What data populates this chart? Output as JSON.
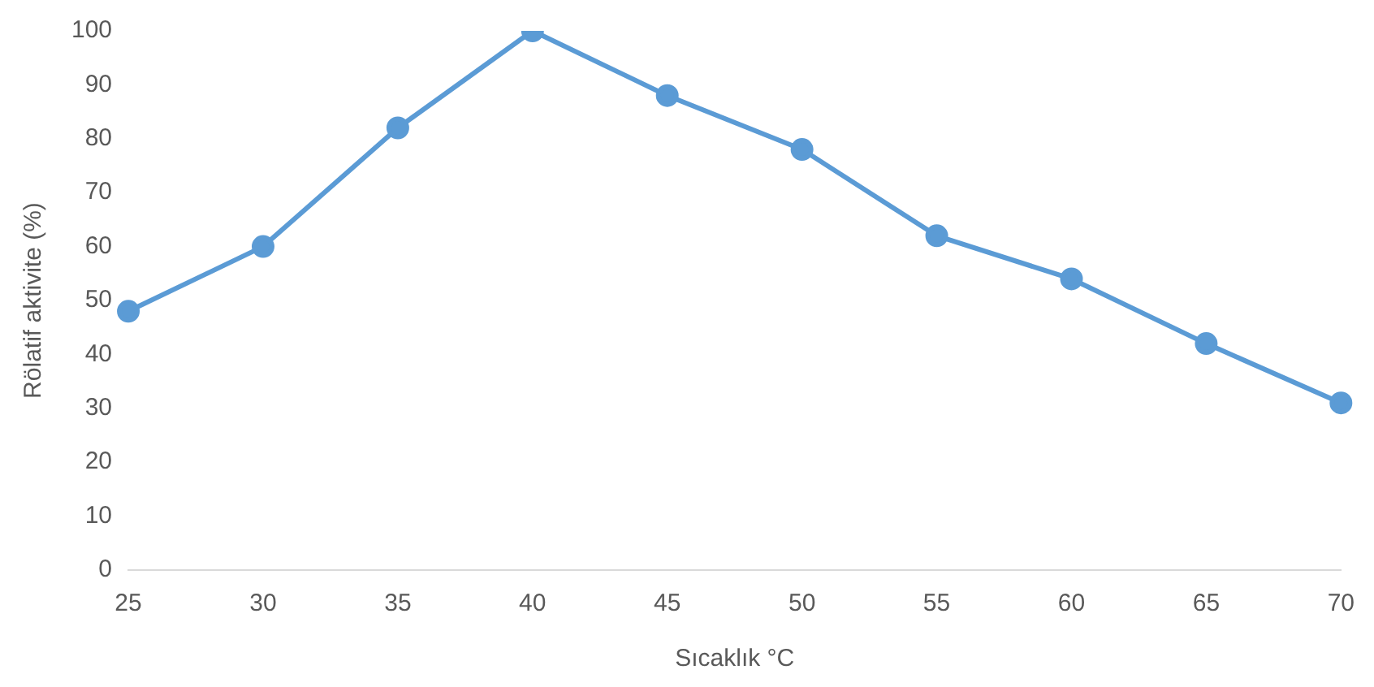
{
  "chart_data": {
    "type": "line",
    "xlabel": "Sıcaklık °C",
    "ylabel": "Rölatif aktivite (%)",
    "categories": [
      "25",
      "30",
      "35",
      "40",
      "45",
      "50",
      "55",
      "60",
      "65",
      "70"
    ],
    "series": [
      {
        "color": "#5b9bd5",
        "values": [
          48,
          60,
          82,
          100,
          88,
          78,
          62,
          54,
          42,
          31
        ]
      }
    ],
    "ylim": [
      0,
      100
    ],
    "yticks": [
      0,
      10,
      20,
      30,
      40,
      50,
      60,
      70,
      80,
      90,
      100
    ],
    "grid": false,
    "legend": false,
    "marker": "circle",
    "line_style": "solid"
  }
}
